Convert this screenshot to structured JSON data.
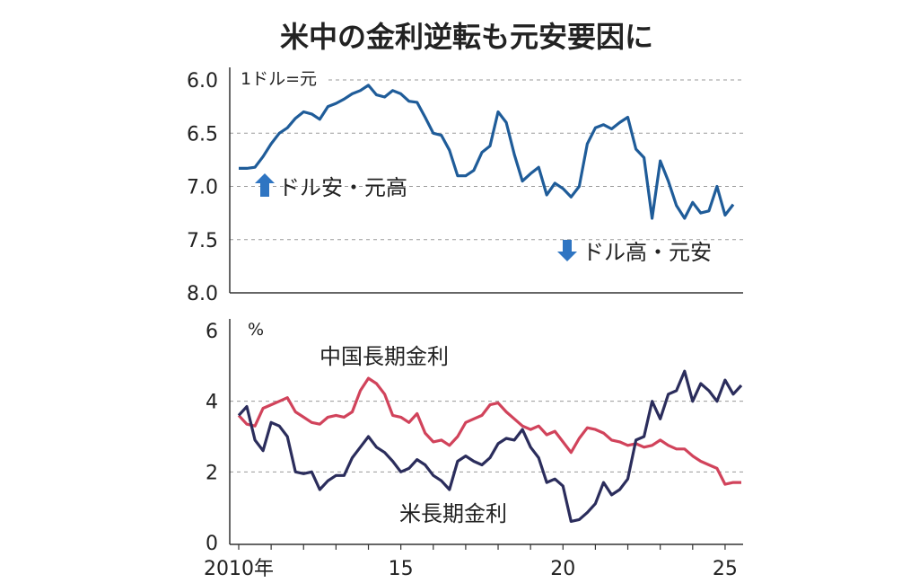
{
  "title": "米中の金利逆転も元安要因に",
  "colors": {
    "usdcny": "#1f5c99",
    "china": "#d1435b",
    "us": "#2b2d5c",
    "arrow": "#2f75c2"
  },
  "chart_data": [
    {
      "type": "line",
      "unit_label": "1ドル=元",
      "ylim": [
        6.0,
        8.0
      ],
      "y_inverted": true,
      "yticks": [
        "6.0",
        "6.5",
        "7.0",
        "7.5",
        "8.0"
      ],
      "grid": true,
      "annotations": {
        "up": "ドル安・元高",
        "down": "ドル高・元安"
      },
      "series": [
        {
          "name": "",
          "x": [
            2010.0,
            2010.25,
            2010.5,
            2010.75,
            2011.0,
            2011.25,
            2011.5,
            2011.75,
            2012.0,
            2012.25,
            2012.5,
            2012.75,
            2013.0,
            2013.25,
            2013.5,
            2013.75,
            2014.0,
            2014.25,
            2014.5,
            2014.75,
            2015.0,
            2015.25,
            2015.5,
            2015.75,
            2016.0,
            2016.25,
            2016.5,
            2016.75,
            2017.0,
            2017.25,
            2017.5,
            2017.75,
            2018.0,
            2018.25,
            2018.5,
            2018.75,
            2019.0,
            2019.25,
            2019.5,
            2019.75,
            2020.0,
            2020.25,
            2020.5,
            2020.75,
            2021.0,
            2021.25,
            2021.5,
            2021.75,
            2022.0,
            2022.25,
            2022.5,
            2022.75,
            2023.0,
            2023.25,
            2023.5,
            2023.75,
            2024.0,
            2024.25,
            2024.5,
            2024.75,
            2025.0,
            2025.25
          ],
          "values": [
            6.83,
            6.83,
            6.82,
            6.72,
            6.6,
            6.5,
            6.45,
            6.36,
            6.3,
            6.32,
            6.37,
            6.25,
            6.22,
            6.18,
            6.13,
            6.1,
            6.05,
            6.14,
            6.16,
            6.1,
            6.13,
            6.2,
            6.21,
            6.35,
            6.5,
            6.52,
            6.66,
            6.9,
            6.9,
            6.85,
            6.68,
            6.62,
            6.3,
            6.4,
            6.7,
            6.95,
            6.88,
            6.82,
            7.08,
            6.97,
            7.02,
            7.1,
            7.0,
            6.6,
            6.45,
            6.42,
            6.46,
            6.4,
            6.35,
            6.65,
            6.73,
            7.3,
            6.76,
            6.95,
            7.18,
            7.3,
            7.15,
            7.25,
            7.23,
            7.0,
            7.27,
            7.17
          ]
        }
      ]
    },
    {
      "type": "line",
      "unit_label": "%",
      "ylim": [
        0,
        6
      ],
      "yticks": [
        "0",
        "2",
        "4",
        "6"
      ],
      "grid": true,
      "xlim": [
        2010,
        2025.5
      ],
      "xticks": [
        {
          "x": 2010,
          "label": "2010年"
        },
        {
          "x": 2015,
          "label": "15"
        },
        {
          "x": 2020,
          "label": "20"
        },
        {
          "x": 2025,
          "label": "25"
        }
      ],
      "series": [
        {
          "name": "中国長期金利",
          "x": [
            2010.0,
            2010.25,
            2010.5,
            2010.75,
            2011.0,
            2011.25,
            2011.5,
            2011.75,
            2012.0,
            2012.25,
            2012.5,
            2012.75,
            2013.0,
            2013.25,
            2013.5,
            2013.75,
            2014.0,
            2014.25,
            2014.5,
            2014.75,
            2015.0,
            2015.25,
            2015.5,
            2015.75,
            2016.0,
            2016.25,
            2016.5,
            2016.75,
            2017.0,
            2017.25,
            2017.5,
            2017.75,
            2018.0,
            2018.25,
            2018.5,
            2018.75,
            2019.0,
            2019.25,
            2019.5,
            2019.75,
            2020.0,
            2020.25,
            2020.5,
            2020.75,
            2021.0,
            2021.25,
            2021.5,
            2021.75,
            2022.0,
            2022.25,
            2022.5,
            2022.75,
            2023.0,
            2023.25,
            2023.5,
            2023.75,
            2024.0,
            2024.25,
            2024.5,
            2024.75,
            2025.0,
            2025.25,
            2025.5
          ],
          "values": [
            3.6,
            3.35,
            3.3,
            3.8,
            3.9,
            4.0,
            4.1,
            3.7,
            3.55,
            3.4,
            3.35,
            3.55,
            3.6,
            3.55,
            3.7,
            4.3,
            4.65,
            4.5,
            4.2,
            3.6,
            3.55,
            3.4,
            3.65,
            3.1,
            2.85,
            2.9,
            2.75,
            3.0,
            3.4,
            3.5,
            3.6,
            3.9,
            3.95,
            3.7,
            3.5,
            3.3,
            3.2,
            3.3,
            3.05,
            3.15,
            2.85,
            2.55,
            2.95,
            3.25,
            3.2,
            3.1,
            2.9,
            2.85,
            2.75,
            2.8,
            2.7,
            2.75,
            2.9,
            2.75,
            2.65,
            2.65,
            2.45,
            2.3,
            2.2,
            2.1,
            1.65,
            1.7,
            1.7
          ]
        },
        {
          "name": "米長期金利",
          "x": [
            2010.0,
            2010.25,
            2010.5,
            2010.75,
            2011.0,
            2011.25,
            2011.5,
            2011.75,
            2012.0,
            2012.25,
            2012.5,
            2012.75,
            2013.0,
            2013.25,
            2013.5,
            2013.75,
            2014.0,
            2014.25,
            2014.5,
            2014.75,
            2015.0,
            2015.25,
            2015.5,
            2015.75,
            2016.0,
            2016.25,
            2016.5,
            2016.75,
            2017.0,
            2017.25,
            2017.5,
            2017.75,
            2018.0,
            2018.25,
            2018.5,
            2018.75,
            2019.0,
            2019.25,
            2019.5,
            2019.75,
            2020.0,
            2020.25,
            2020.5,
            2020.75,
            2021.0,
            2021.25,
            2021.5,
            2021.75,
            2022.0,
            2022.25,
            2022.5,
            2022.75,
            2023.0,
            2023.25,
            2023.5,
            2023.75,
            2024.0,
            2024.25,
            2024.5,
            2024.75,
            2025.0,
            2025.25,
            2025.5
          ],
          "values": [
            3.6,
            3.85,
            2.9,
            2.6,
            3.4,
            3.3,
            3.0,
            2.0,
            1.95,
            2.0,
            1.5,
            1.75,
            1.9,
            1.9,
            2.4,
            2.7,
            3.0,
            2.7,
            2.55,
            2.3,
            2.0,
            2.1,
            2.35,
            2.2,
            1.9,
            1.75,
            1.5,
            2.3,
            2.45,
            2.3,
            2.2,
            2.4,
            2.8,
            2.95,
            2.9,
            3.2,
            2.7,
            2.4,
            1.7,
            1.8,
            1.6,
            0.6,
            0.65,
            0.85,
            1.1,
            1.7,
            1.35,
            1.5,
            1.8,
            2.9,
            3.0,
            4.0,
            3.5,
            4.2,
            4.3,
            4.85,
            4.0,
            4.5,
            4.3,
            4.0,
            4.6,
            4.2,
            4.45
          ]
        }
      ]
    }
  ]
}
